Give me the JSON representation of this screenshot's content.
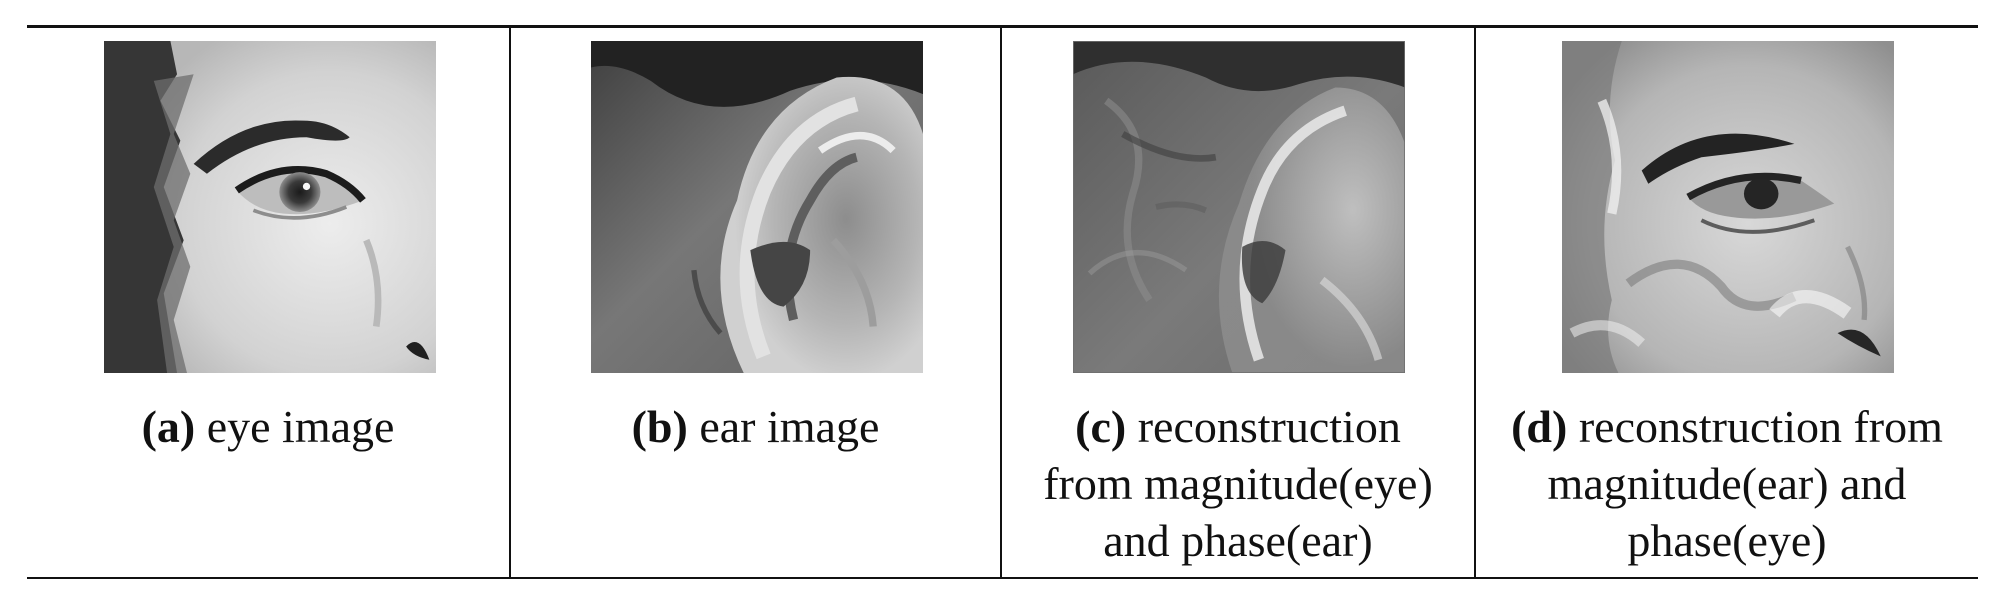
{
  "panels": [
    {
      "letter": "(a)",
      "caption": "eye image",
      "image_icon": "eye-photo",
      "tone": "grayscale"
    },
    {
      "letter": "(b)",
      "caption": "ear image",
      "image_icon": "ear-photo",
      "tone": "grayscale"
    },
    {
      "letter": "(c)",
      "caption_lines": [
        "reconstruction",
        "from magnitude(eye)",
        "and phase(ear)"
      ],
      "image_icon": "reconstructed-ear-photo",
      "tone": "grayscale"
    },
    {
      "letter": "(d)",
      "caption_lines": [
        "reconstruction from",
        "magnitude(ear) and",
        "phase(eye)"
      ],
      "image_icon": "reconstructed-eye-photo",
      "tone": "grayscale"
    }
  ],
  "colors": {
    "rule": "#111111",
    "background": "#ffffff"
  }
}
